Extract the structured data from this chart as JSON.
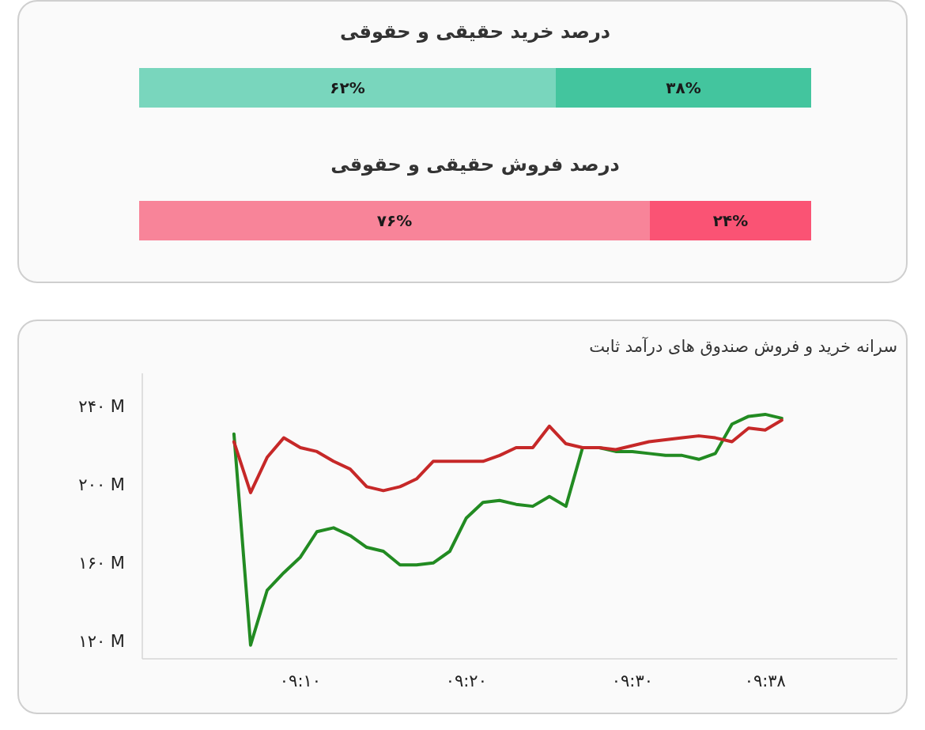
{
  "chart_data": [
    {
      "type": "bar",
      "orientation": "horizontal",
      "stacked": true,
      "title": "درصد خرید حقیقی و حقوقی",
      "categories": [
        null
      ],
      "series": [
        {
          "color": "#79d6bd",
          "values": [
            62
          ],
          "value_labels": [
            "۶۲%"
          ]
        },
        {
          "color": "#43c59e",
          "values": [
            38
          ],
          "value_labels": [
            "۳۸%"
          ]
        }
      ]
    },
    {
      "type": "bar",
      "orientation": "horizontal",
      "stacked": true,
      "title": "درصد فروش حقیقی و حقوقی",
      "categories": [
        null
      ],
      "series": [
        {
          "color": "#f88499",
          "values": [
            76
          ],
          "value_labels": [
            "۷۶%"
          ]
        },
        {
          "color": "#fa5374",
          "values": [
            24
          ],
          "value_labels": [
            "۲۴%"
          ]
        }
      ]
    },
    {
      "type": "line",
      "title": "سرانه خرید و فروش صندوق های درآمد ثابت",
      "x": [
        9.1,
        9.1167,
        9.1333,
        9.15,
        9.1667,
        9.1833,
        9.2,
        9.2167,
        9.2333,
        9.25,
        9.2667,
        9.2833,
        9.3,
        9.3167,
        9.3333,
        9.35,
        9.3667,
        9.3833,
        9.4,
        9.4167,
        9.4333,
        9.45,
        9.4667,
        9.4833,
        9.5,
        9.5167,
        9.5333,
        9.55,
        9.5667,
        9.5833,
        9.6,
        9.6167,
        9.6333,
        9.65
      ],
      "series": [
        {
          "color": "#228b22",
          "values": [
            226,
            118,
            146,
            155,
            163,
            176,
            178,
            174,
            168,
            166,
            159,
            159,
            160,
            166,
            183,
            191,
            192,
            190,
            189,
            194,
            189,
            219,
            219,
            217,
            217,
            216,
            215,
            215,
            213,
            216,
            231,
            235,
            236,
            234
          ]
        },
        {
          "color": "#c62828",
          "values": [
            222,
            196,
            214,
            224,
            219,
            217,
            212,
            208,
            199,
            197,
            199,
            203,
            212,
            212,
            212,
            212,
            215,
            219,
            219,
            230,
            221,
            219,
            219,
            218,
            220,
            222,
            223,
            224,
            225,
            224,
            222,
            229,
            228,
            233
          ]
        }
      ],
      "xlim": [
        9.008,
        9.766
      ],
      "ylim": [
        111,
        257
      ],
      "xticks": [
        {
          "value": 9.1667,
          "label": "۰۹:۱۰"
        },
        {
          "value": 9.3333,
          "label": "۰۹:۲۰"
        },
        {
          "value": 9.5,
          "label": "۰۹:۳۰"
        },
        {
          "value": 9.6333,
          "label": "۰۹:۳۸"
        }
      ],
      "yticks": [
        {
          "value": 120,
          "label": "۱۲۰ M"
        },
        {
          "value": 160,
          "label": "۱۶۰ M"
        },
        {
          "value": 200,
          "label": "۲۰۰ M"
        },
        {
          "value": 240,
          "label": "۲۴۰ M"
        }
      ]
    }
  ]
}
